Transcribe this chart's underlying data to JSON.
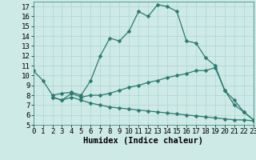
{
  "xlabel": "Humidex (Indice chaleur)",
  "bg_color": "#ceeae7",
  "line_color": "#2a7a6f",
  "grid_color": "#aed4d0",
  "line1_x": [
    0,
    1,
    2,
    3,
    4,
    5,
    6,
    7,
    8,
    9,
    10,
    11,
    12,
    13,
    14,
    15,
    16,
    17,
    18,
    19,
    20,
    21,
    22,
    23
  ],
  "line1_y": [
    10.5,
    9.5,
    8.0,
    8.2,
    8.3,
    8.0,
    9.5,
    12.0,
    13.8,
    13.5,
    14.5,
    16.5,
    16.0,
    17.2,
    17.0,
    16.5,
    13.5,
    13.3,
    11.8,
    11.0,
    8.5,
    7.5,
    6.3,
    5.5
  ],
  "line2_x": [
    2,
    3,
    4,
    5,
    6,
    7,
    8,
    9,
    10,
    11,
    12,
    13,
    14,
    15,
    16,
    17,
    18,
    19,
    20,
    21,
    22,
    23
  ],
  "line2_y": [
    7.8,
    7.5,
    8.2,
    7.8,
    8.0,
    8.0,
    8.2,
    8.5,
    8.8,
    9.0,
    9.3,
    9.5,
    9.8,
    10.0,
    10.2,
    10.5,
    10.5,
    10.8,
    8.5,
    7.0,
    6.3,
    5.5
  ],
  "line3_x": [
    2,
    3,
    4,
    5,
    6,
    7,
    8,
    9,
    10,
    11,
    12,
    13,
    14,
    15,
    16,
    17,
    18,
    19,
    20,
    21,
    22,
    23
  ],
  "line3_y": [
    7.8,
    7.5,
    7.8,
    7.5,
    7.2,
    7.0,
    6.8,
    6.7,
    6.6,
    6.5,
    6.4,
    6.3,
    6.2,
    6.1,
    6.0,
    5.9,
    5.8,
    5.7,
    5.6,
    5.5,
    5.5,
    5.4
  ],
  "xlim": [
    0,
    23
  ],
  "ylim": [
    5,
    17.5
  ],
  "yticks": [
    5,
    6,
    7,
    8,
    9,
    10,
    11,
    12,
    13,
    14,
    15,
    16,
    17
  ],
  "xticks": [
    0,
    1,
    2,
    3,
    4,
    5,
    6,
    7,
    8,
    9,
    10,
    11,
    12,
    13,
    14,
    15,
    16,
    17,
    18,
    19,
    20,
    21,
    22,
    23
  ],
  "tick_fontsize": 6.5,
  "label_fontsize": 7.5,
  "marker_size": 2.5,
  "line_width": 0.9
}
